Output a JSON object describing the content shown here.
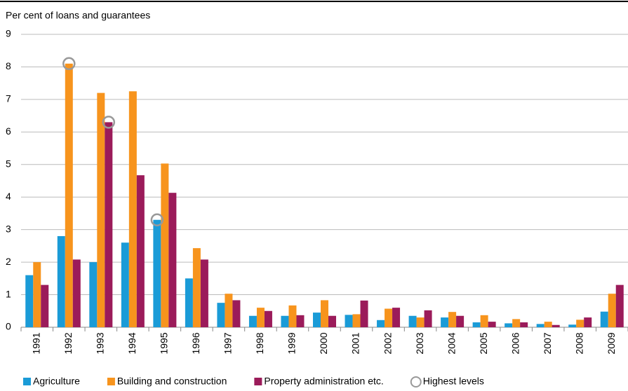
{
  "chart_data": {
    "type": "bar",
    "title": "Per cent of loans and guarantees",
    "categories": [
      "1991",
      "1992",
      "1993",
      "1994",
      "1995",
      "1996",
      "1997",
      "1998",
      "1999",
      "2000",
      "2001",
      "2002",
      "2003",
      "2004",
      "2005",
      "2006",
      "2007",
      "2008",
      "2009"
    ],
    "series": [
      {
        "name": "Agriculture",
        "color": "#1a9bd7",
        "values": [
          1.6,
          2.8,
          2.0,
          2.6,
          3.3,
          1.5,
          0.75,
          0.35,
          0.35,
          0.45,
          0.38,
          0.22,
          0.35,
          0.3,
          0.15,
          0.12,
          0.1,
          0.08,
          0.48
        ]
      },
      {
        "name": "Building and construction",
        "color": "#f7941d",
        "values": [
          2.0,
          8.1,
          7.2,
          7.25,
          5.03,
          2.43,
          1.03,
          0.6,
          0.67,
          0.83,
          0.4,
          0.57,
          0.3,
          0.47,
          0.37,
          0.25,
          0.17,
          0.23,
          1.03
        ]
      },
      {
        "name": "Property administration etc.",
        "color": "#9b1b5a",
        "values": [
          1.3,
          2.08,
          6.3,
          4.67,
          4.13,
          2.08,
          0.83,
          0.5,
          0.37,
          0.35,
          0.82,
          0.6,
          0.52,
          0.35,
          0.17,
          0.15,
          0.07,
          0.3,
          1.3
        ]
      }
    ],
    "highlight": {
      "name": "Highest levels",
      "color": "#999999",
      "points": [
        {
          "series": 1,
          "index": 1
        },
        {
          "series": 2,
          "index": 2
        },
        {
          "series": 0,
          "index": 4
        }
      ]
    },
    "ylim": [
      0,
      9
    ],
    "yticks": [
      0,
      1,
      2,
      3,
      4,
      5,
      6,
      7,
      8,
      9
    ],
    "grid": true,
    "legend": "bottom"
  }
}
